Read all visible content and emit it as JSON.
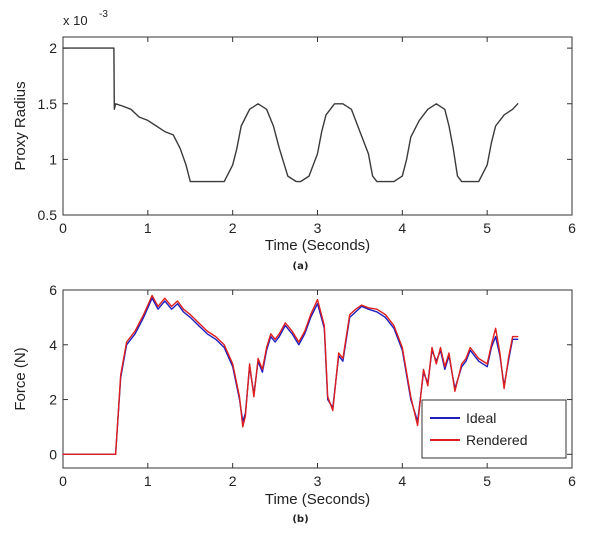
{
  "chart_data": [
    {
      "panel_label": "(a)",
      "type": "line",
      "title": "",
      "xlabel": "Time (Seconds)",
      "ylabel": "Proxy Radius",
      "y_scale_label": "x 10",
      "y_scale_exp": "-3",
      "xlim": [
        0,
        6
      ],
      "ylim": [
        0.5,
        2.1
      ],
      "xticks": [
        "0",
        "1",
        "2",
        "3",
        "4",
        "5",
        "6"
      ],
      "yticks": [
        "0.5",
        "1",
        "1.5",
        "2"
      ],
      "xtick_values": [
        0,
        1,
        2,
        3,
        4,
        5,
        6
      ],
      "ytick_values": [
        0.5,
        1,
        1.5,
        2
      ],
      "grid": false,
      "series": [
        {
          "color": "#3a3a3a",
          "x": [
            0,
            0.58,
            0.6,
            0.605,
            0.62,
            0.7,
            0.8,
            0.9,
            1.0,
            1.1,
            1.2,
            1.3,
            1.38,
            1.45,
            1.5,
            1.6,
            1.7,
            1.8,
            1.9,
            2.0,
            2.05,
            2.1,
            2.2,
            2.3,
            2.4,
            2.48,
            2.55,
            2.65,
            2.75,
            2.8,
            2.9,
            3.0,
            3.05,
            3.1,
            3.2,
            3.3,
            3.4,
            3.5,
            3.6,
            3.65,
            3.7,
            3.8,
            3.9,
            4.0,
            4.05,
            4.1,
            4.2,
            4.3,
            4.4,
            4.5,
            4.55,
            4.6,
            4.65,
            4.7,
            4.8,
            4.9,
            5.0,
            5.05,
            5.1,
            5.2,
            5.3,
            5.36
          ],
          "y": [
            2.0,
            2.0,
            2.0,
            1.45,
            1.5,
            1.48,
            1.45,
            1.38,
            1.35,
            1.3,
            1.25,
            1.22,
            1.1,
            0.95,
            0.8,
            0.8,
            0.8,
            0.8,
            0.8,
            0.95,
            1.1,
            1.3,
            1.45,
            1.5,
            1.45,
            1.3,
            1.1,
            0.85,
            0.8,
            0.8,
            0.85,
            1.05,
            1.25,
            1.4,
            1.5,
            1.5,
            1.45,
            1.25,
            1.05,
            0.85,
            0.8,
            0.8,
            0.8,
            0.85,
            1.0,
            1.2,
            1.35,
            1.45,
            1.5,
            1.45,
            1.3,
            1.1,
            0.85,
            0.8,
            0.8,
            0.8,
            0.95,
            1.15,
            1.3,
            1.4,
            1.45,
            1.5
          ]
        }
      ]
    },
    {
      "panel_label": "(b)",
      "type": "line",
      "title": "",
      "xlabel": "Time (Seconds)",
      "ylabel": "Force (N)",
      "xlim": [
        0,
        6
      ],
      "ylim": [
        -0.5,
        6
      ],
      "xticks": [
        "0",
        "1",
        "2",
        "3",
        "4",
        "5",
        "6"
      ],
      "yticks": [
        "0",
        "2",
        "4",
        "6"
      ],
      "xtick_values": [
        0,
        1,
        2,
        3,
        4,
        5,
        6
      ],
      "ytick_values": [
        0,
        2,
        4,
        6
      ],
      "grid": false,
      "legend_position": "bottom-right",
      "series": [
        {
          "name": "Ideal",
          "color": "#1f1fbf",
          "x": [
            0,
            0.62,
            0.68,
            0.75,
            0.85,
            0.95,
            1.05,
            1.12,
            1.2,
            1.28,
            1.35,
            1.42,
            1.5,
            1.6,
            1.7,
            1.8,
            1.9,
            2.0,
            2.08,
            2.12,
            2.15,
            2.2,
            2.25,
            2.3,
            2.35,
            2.4,
            2.45,
            2.5,
            2.55,
            2.62,
            2.7,
            2.78,
            2.85,
            2.92,
            3.0,
            3.08,
            3.12,
            3.18,
            3.25,
            3.3,
            3.38,
            3.45,
            3.52,
            3.6,
            3.7,
            3.8,
            3.9,
            4.0,
            4.1,
            4.18,
            4.25,
            4.3,
            4.35,
            4.4,
            4.45,
            4.5,
            4.55,
            4.62,
            4.7,
            4.75,
            4.8,
            4.9,
            5.0,
            5.05,
            5.1,
            5.15,
            5.2,
            5.25,
            5.3,
            5.36
          ],
          "y": [
            0,
            0,
            2.8,
            4.0,
            4.4,
            5.0,
            5.7,
            5.3,
            5.6,
            5.3,
            5.5,
            5.2,
            5.0,
            4.7,
            4.4,
            4.2,
            3.9,
            3.2,
            2.0,
            1.2,
            1.5,
            3.2,
            2.2,
            3.4,
            3.0,
            3.8,
            4.3,
            4.1,
            4.3,
            4.7,
            4.4,
            4.0,
            4.4,
            5.0,
            5.5,
            4.6,
            2.0,
            1.7,
            3.6,
            3.4,
            5.0,
            5.2,
            5.4,
            5.3,
            5.2,
            5.0,
            4.6,
            3.8,
            2.0,
            1.2,
            3.0,
            2.6,
            3.8,
            3.4,
            3.8,
            3.1,
            3.6,
            2.4,
            3.2,
            3.4,
            3.8,
            3.4,
            3.2,
            3.9,
            4.3,
            3.6,
            2.5,
            3.4,
            4.2,
            4.2
          ]
        },
        {
          "name": "Rendered",
          "color": "#dd1f1f",
          "x": [
            0,
            0.62,
            0.68,
            0.75,
            0.85,
            0.95,
            1.05,
            1.12,
            1.2,
            1.28,
            1.35,
            1.42,
            1.5,
            1.6,
            1.7,
            1.8,
            1.9,
            2.0,
            2.08,
            2.12,
            2.15,
            2.2,
            2.25,
            2.3,
            2.35,
            2.4,
            2.45,
            2.5,
            2.55,
            2.62,
            2.7,
            2.78,
            2.85,
            2.92,
            3.0,
            3.08,
            3.12,
            3.18,
            3.25,
            3.3,
            3.38,
            3.45,
            3.52,
            3.6,
            3.7,
            3.8,
            3.9,
            4.0,
            4.1,
            4.18,
            4.25,
            4.3,
            4.35,
            4.4,
            4.45,
            4.5,
            4.55,
            4.62,
            4.7,
            4.75,
            4.8,
            4.9,
            5.0,
            5.05,
            5.1,
            5.15,
            5.2,
            5.25,
            5.3,
            5.36
          ],
          "y": [
            0,
            0,
            2.9,
            4.1,
            4.5,
            5.1,
            5.8,
            5.4,
            5.7,
            5.4,
            5.6,
            5.3,
            5.1,
            4.8,
            4.5,
            4.3,
            4.0,
            3.3,
            2.1,
            1.0,
            1.4,
            3.3,
            2.1,
            3.5,
            3.1,
            3.9,
            4.4,
            4.2,
            4.4,
            4.8,
            4.5,
            4.1,
            4.5,
            5.1,
            5.65,
            4.7,
            2.1,
            1.6,
            3.7,
            3.5,
            5.1,
            5.3,
            5.45,
            5.35,
            5.3,
            5.1,
            4.7,
            3.9,
            2.1,
            1.05,
            3.1,
            2.5,
            3.9,
            3.3,
            3.9,
            3.2,
            3.7,
            2.3,
            3.3,
            3.5,
            3.9,
            3.5,
            3.3,
            4.0,
            4.6,
            3.7,
            2.4,
            3.5,
            4.3,
            4.3
          ]
        }
      ]
    }
  ]
}
